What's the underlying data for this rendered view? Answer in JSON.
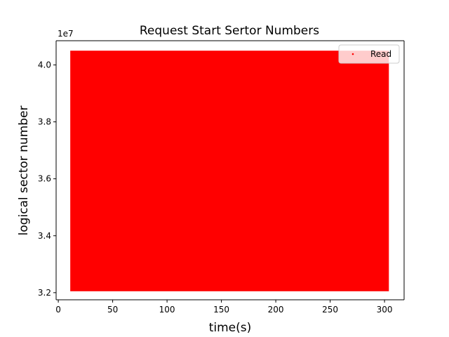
{
  "chart_data": {
    "type": "scatter",
    "title": "Request Start Sertor Numbers",
    "xlabel": "time(s)",
    "ylabel": "logical sector number",
    "y_offset_label": "1e7",
    "xlim": [
      -2,
      318
    ],
    "ylim": [
      31750000,
      40850000
    ],
    "xticks": [
      0,
      50,
      100,
      150,
      200,
      250,
      300
    ],
    "yticks": [
      32000000,
      34000000,
      36000000,
      38000000,
      40000000
    ],
    "ytick_labels": [
      "3.2",
      "3.4",
      "3.6",
      "3.8",
      "4.0"
    ],
    "grid": false,
    "legend": {
      "placement": "top-right",
      "entries": [
        "Read"
      ]
    },
    "series": [
      {
        "name": "Read",
        "color": "#ff0000",
        "marker": "point",
        "x_range": [
          11,
          304
        ],
        "y_range": [
          32050000,
          40500000
        ]
      }
    ]
  }
}
